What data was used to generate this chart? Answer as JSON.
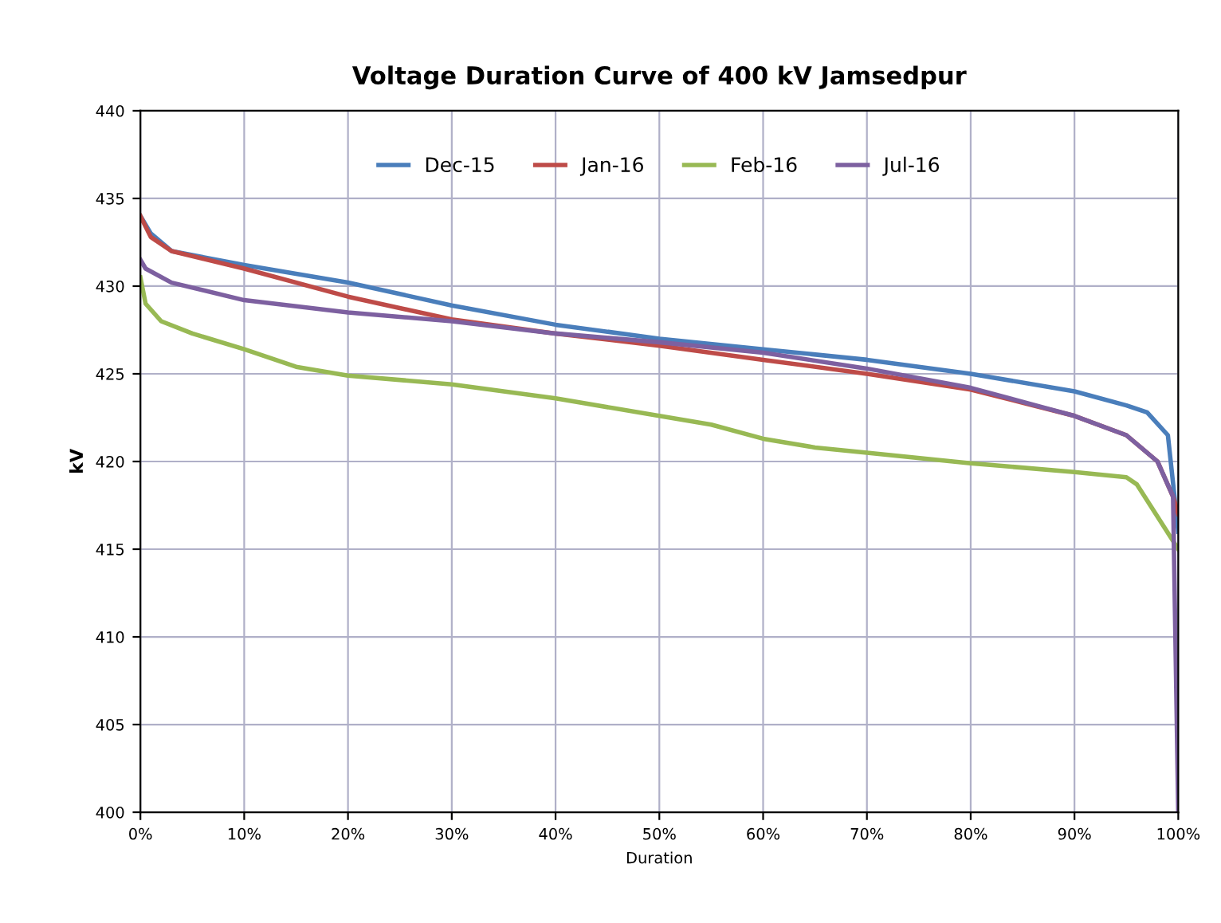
{
  "chart_data": {
    "type": "line",
    "title": "Voltage Duration Curve of 400 kV Jamsedpur",
    "xlabel": "Duration",
    "ylabel": "kV",
    "xlim": [
      0,
      100
    ],
    "xticks": [
      {
        "value": 0,
        "label": "0%"
      },
      {
        "value": 10,
        "label": "10%"
      },
      {
        "value": 20,
        "label": "20%"
      },
      {
        "value": 30,
        "label": "30%"
      },
      {
        "value": 40,
        "label": "40%"
      },
      {
        "value": 50,
        "label": "50%"
      },
      {
        "value": 60,
        "label": "60%"
      },
      {
        "value": 70,
        "label": "70%"
      },
      {
        "value": 80,
        "label": "80%"
      },
      {
        "value": 90,
        "label": "90%"
      },
      {
        "value": 100,
        "label": "100%"
      }
    ],
    "ylim": [
      400,
      440
    ],
    "yticks": [
      400,
      405,
      410,
      415,
      420,
      425,
      430,
      435,
      440
    ],
    "grid": true,
    "legend": "top",
    "marker": "none",
    "line_style": "solid",
    "series": [
      {
        "name": "Dec-15",
        "color": "#4a7ebb",
        "x": [
          0,
          1,
          3,
          10,
          20,
          30,
          40,
          50,
          60,
          70,
          80,
          90,
          95,
          97,
          99,
          100
        ],
        "values": [
          434,
          433,
          432,
          431.2,
          430.2,
          428.9,
          427.8,
          427,
          426.4,
          425.8,
          425,
          424,
          423.2,
          422.8,
          421.5,
          416
        ]
      },
      {
        "name": "Jan-16",
        "color": "#be4b48",
        "x": [
          0,
          1,
          3,
          10,
          20,
          30,
          40,
          50,
          60,
          70,
          80,
          90,
          95,
          98,
          99.5,
          100
        ],
        "values": [
          434,
          432.8,
          432,
          431,
          429.4,
          428.1,
          427.3,
          426.6,
          425.8,
          425,
          424.1,
          422.6,
          421.5,
          420,
          418,
          417
        ]
      },
      {
        "name": "Feb-16",
        "color": "#98b954",
        "x": [
          0,
          0.5,
          2,
          5,
          10,
          15,
          20,
          30,
          40,
          50,
          55,
          60,
          65,
          70,
          80,
          90,
          95,
          96,
          100
        ],
        "values": [
          430.5,
          429,
          428,
          427.3,
          426.4,
          425.4,
          424.9,
          424.4,
          423.6,
          422.6,
          422.1,
          421.3,
          420.8,
          420.5,
          419.9,
          419.4,
          419.1,
          418.7,
          415
        ]
      },
      {
        "name": "Jul-16",
        "color": "#7d60a0",
        "x": [
          0,
          0.5,
          3,
          10,
          20,
          30,
          40,
          50,
          60,
          70,
          80,
          90,
          95,
          98,
          99.5,
          100
        ],
        "values": [
          431.5,
          431,
          430.2,
          429.2,
          428.5,
          428,
          427.3,
          426.8,
          426.2,
          425.3,
          424.2,
          422.6,
          421.5,
          420,
          418,
          400
        ]
      }
    ]
  }
}
